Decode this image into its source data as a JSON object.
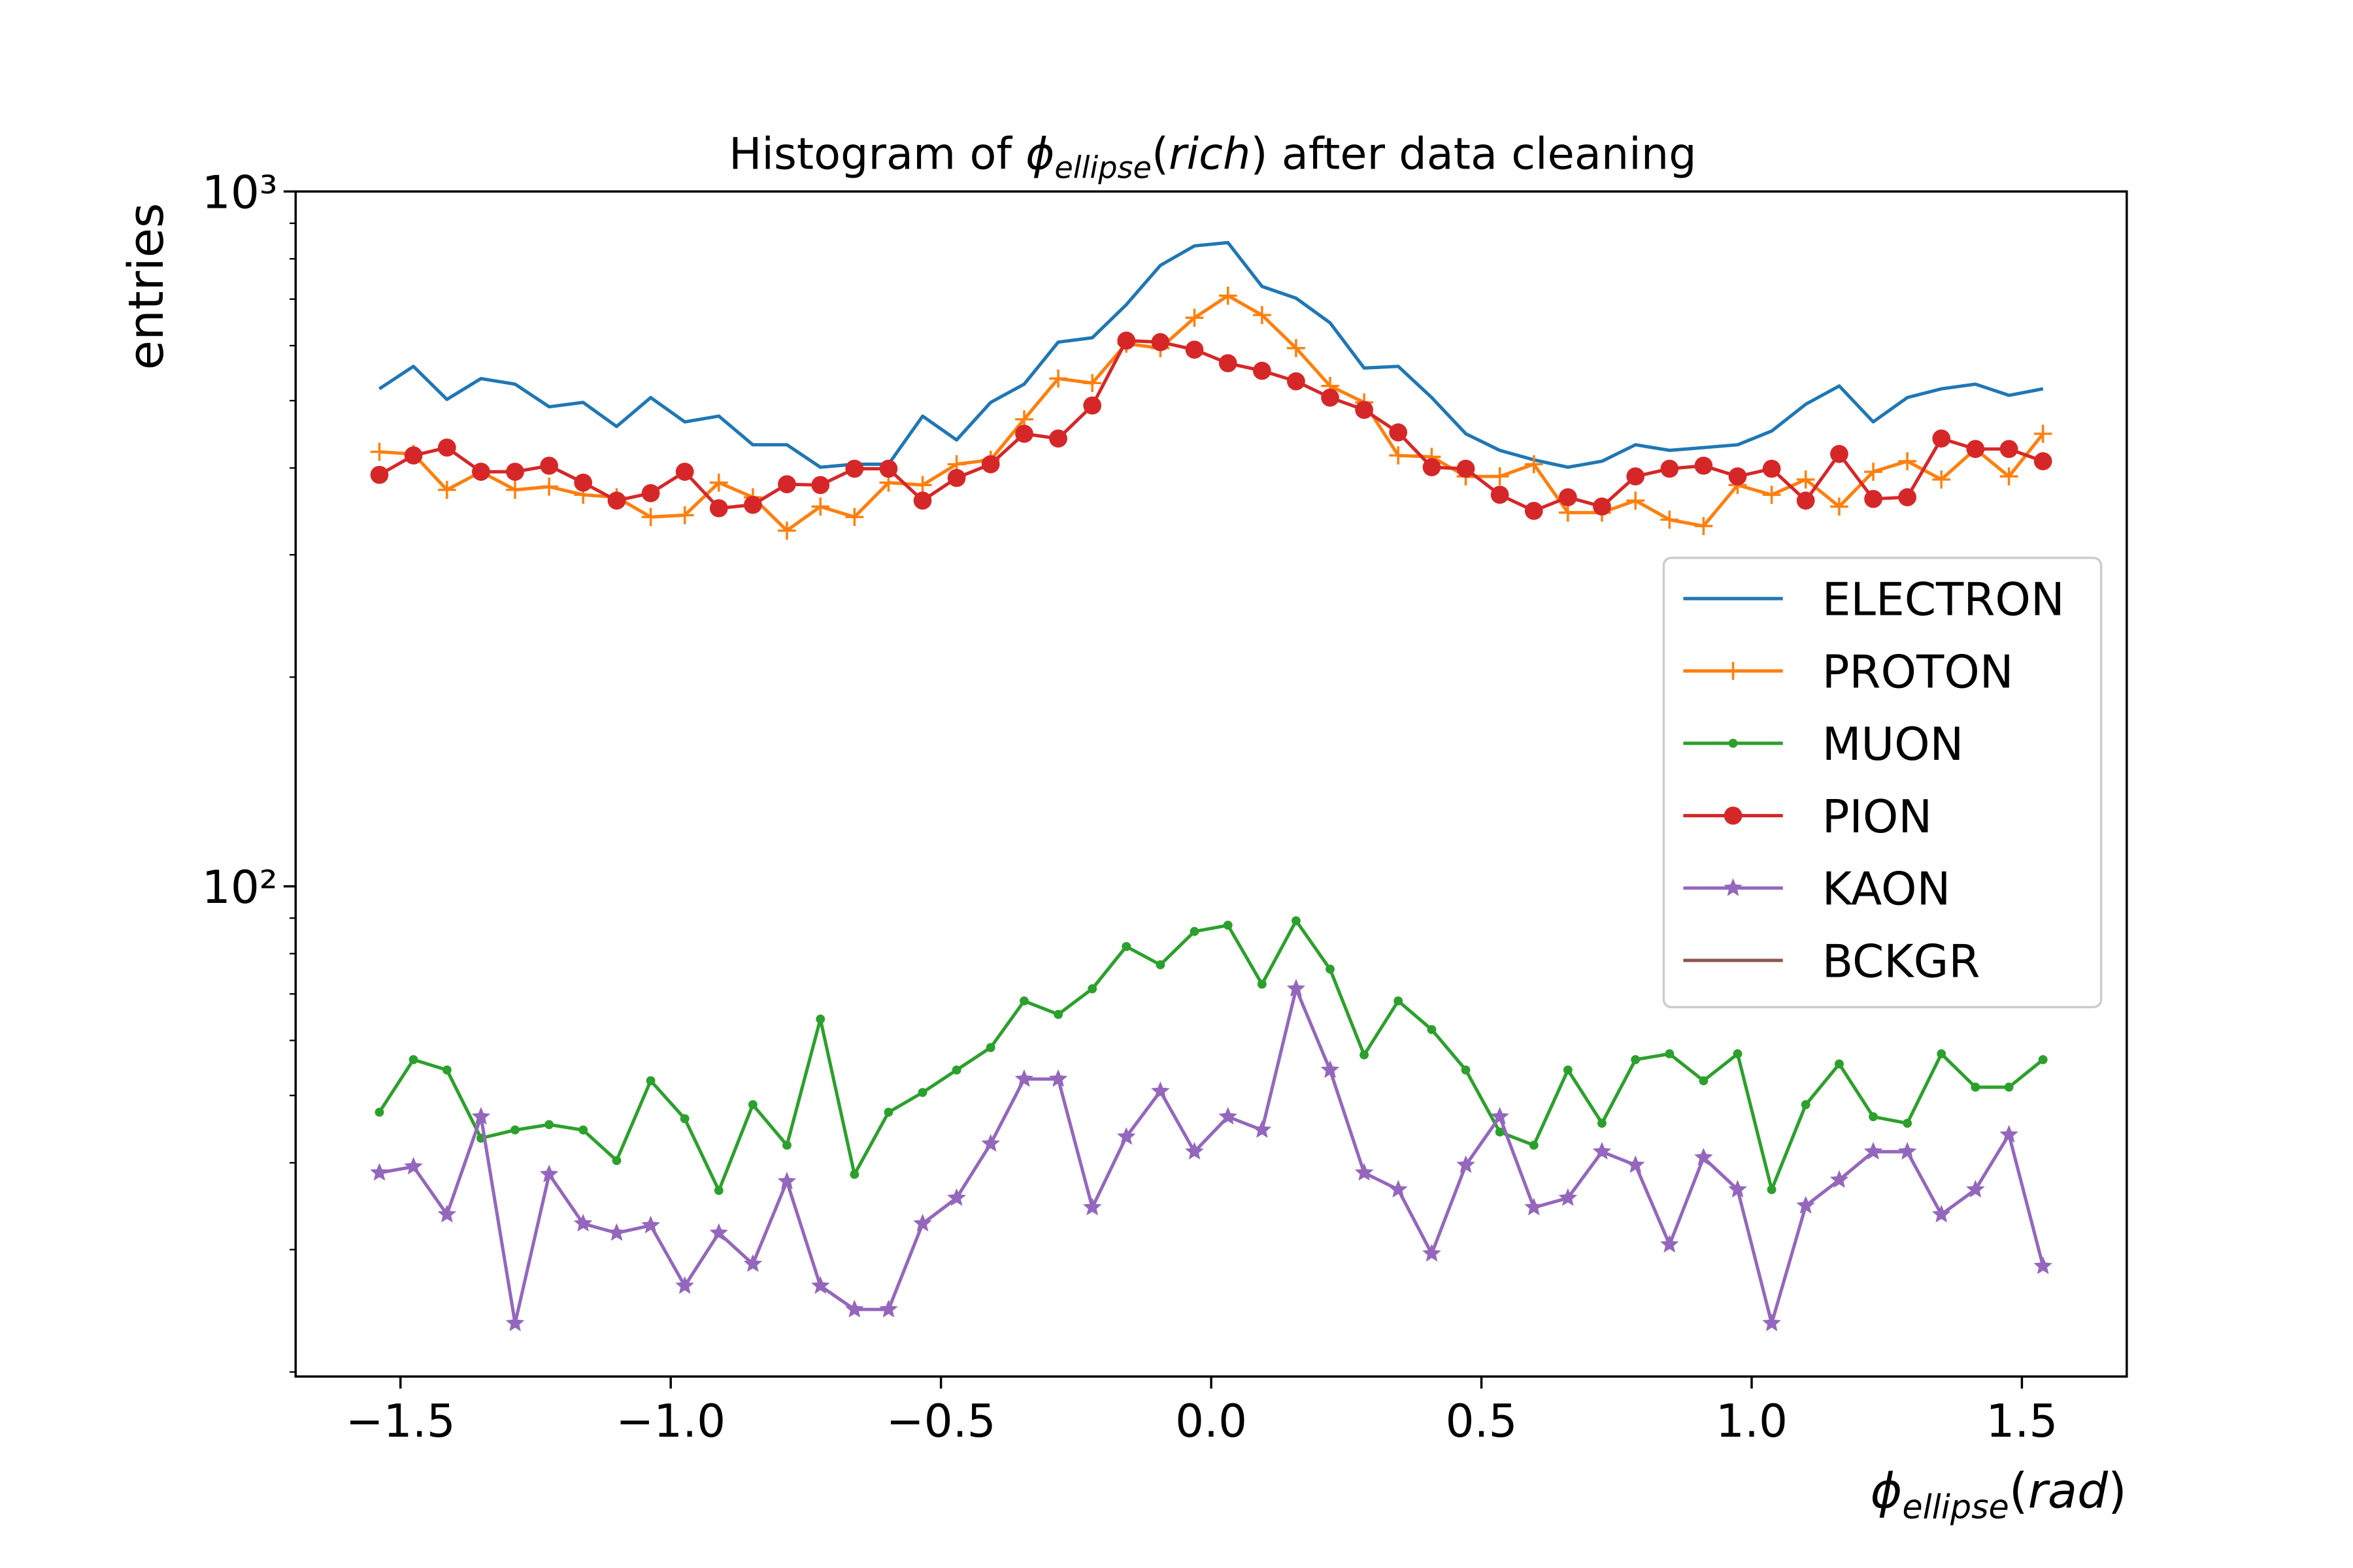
{
  "chart_data": {
    "type": "line",
    "title_parts": [
      "Histogram of ",
      "ϕ",
      "ellipse",
      "(",
      "rich",
      ") after data cleaning"
    ],
    "y_label": "entries",
    "x_label_parts": [
      "ϕ",
      "ellipse",
      "(",
      "rad",
      ")"
    ],
    "log_y": true,
    "legend": "right",
    "xlim": [
      -1.694,
      1.694
    ],
    "ylim": [
      19.7,
      1000
    ],
    "xticks": [
      {
        "value": -1.5,
        "label": "−1.5"
      },
      {
        "value": -1.0,
        "label": "−1.0"
      },
      {
        "value": -0.5,
        "label": "−0.5"
      },
      {
        "value": 0.0,
        "label": "0.0"
      },
      0.5,
      {
        "value": 1.0,
        "label": "1.0"
      },
      1.5
    ],
    "yticks": [
      {
        "value": 100,
        "label": "10²"
      },
      {
        "value": 1000,
        "label": "10³"
      }
    ],
    "yminorticks": [
      20,
      30,
      40,
      50,
      60,
      70,
      80,
      90,
      200,
      300,
      400,
      500,
      600,
      700,
      800,
      900
    ],
    "x": [
      -1.539,
      -1.476,
      -1.414,
      -1.351,
      -1.288,
      -1.225,
      -1.162,
      -1.1,
      -1.037,
      -0.974,
      -0.911,
      -0.848,
      -0.785,
      -0.723,
      -0.66,
      -0.597,
      -0.534,
      -0.471,
      -0.408,
      -0.346,
      -0.283,
      -0.22,
      -0.157,
      -0.094,
      -0.031,
      0.031,
      0.094,
      0.157,
      0.22,
      0.283,
      0.346,
      0.408,
      0.471,
      0.534,
      0.597,
      0.66,
      0.723,
      0.785,
      0.848,
      0.911,
      0.974,
      1.037,
      1.1,
      1.162,
      1.225,
      1.288,
      1.351,
      1.414,
      1.476,
      1.539
    ],
    "series": [
      {
        "name": "ELECTRON",
        "color": "#1f77b4",
        "marker": "none",
        "values": [
          520,
          560,
          502,
          538,
          528,
          490,
          497,
          459,
          505,
          466,
          475,
          432,
          432,
          401,
          405,
          405,
          475,
          439,
          497,
          528,
          607,
          616,
          687,
          783,
          835,
          844,
          730,
          702,
          647,
          557,
          560,
          505,
          448,
          424,
          411,
          401,
          409,
          432,
          424,
          428,
          432,
          452,
          494,
          525,
          466,
          505,
          520,
          528,
          509,
          520
        ]
      },
      {
        "name": "PROTON",
        "color": "#ff7f0e",
        "marker": "plus",
        "values": [
          422,
          419,
          372,
          395,
          372,
          376,
          366,
          363,
          340,
          342,
          381,
          363,
          325,
          352,
          340,
          381,
          378,
          405,
          411,
          470,
          538,
          530,
          604,
          595,
          658,
          708,
          664,
          595,
          525,
          497,
          417,
          415,
          389,
          389,
          405,
          345,
          345,
          359,
          337,
          330,
          378,
          366,
          385,
          352,
          395,
          409,
          385,
          426,
          389,
          448
        ]
      },
      {
        "name": "MUON",
        "color": "#2ca02c",
        "marker": "point",
        "values": [
          47.3,
          56.3,
          54.4,
          43.4,
          44.6,
          45.4,
          44.6,
          40.3,
          52.5,
          46.3,
          36.5,
          48.5,
          42.4,
          64.4,
          38.5,
          47.3,
          50.5,
          54.4,
          58.6,
          68.4,
          65.4,
          71.2,
          81.9,
          77.1,
          86.1,
          87.9,
          72.3,
          89.2,
          76.0,
          57.2,
          68.4,
          62.2,
          54.4,
          44.3,
          42.4,
          54.4,
          45.6,
          56.3,
          57.4,
          52.5,
          57.4,
          36.6,
          48.5,
          55.5,
          46.6,
          45.6,
          57.4,
          51.4,
          51.4,
          56.3
        ]
      },
      {
        "name": "PION",
        "color": "#d62728",
        "marker": "circle",
        "values": [
          391,
          417,
          428,
          395,
          395,
          403,
          381,
          359,
          368,
          395,
          350,
          354,
          379,
          378,
          399,
          399,
          359,
          387,
          405,
          448,
          441,
          492,
          610,
          607,
          592,
          566,
          552,
          533,
          505,
          485,
          450,
          401,
          399,
          366,
          347,
          363,
          352,
          389,
          399,
          403,
          389,
          399,
          359,
          419,
          361,
          363,
          441,
          426,
          426,
          409
        ]
      },
      {
        "name": "KAON",
        "color": "#9467bd",
        "marker": "star",
        "values": [
          38.7,
          39.5,
          33.7,
          46.6,
          23.5,
          38.5,
          32.7,
          31.7,
          32.5,
          26.6,
          31.7,
          28.6,
          37.6,
          26.6,
          24.6,
          24.6,
          32.7,
          35.6,
          42.6,
          52.8,
          52.8,
          34.5,
          43.6,
          50.7,
          41.5,
          46.6,
          44.6,
          71.2,
          54.4,
          38.7,
          36.6,
          29.6,
          39.7,
          46.6,
          34.5,
          35.6,
          41.5,
          39.7,
          30.5,
          40.7,
          36.6,
          23.5,
          34.7,
          37.8,
          41.5,
          41.5,
          33.7,
          36.6,
          43.9,
          28.4
        ]
      },
      {
        "name": "BCKGR",
        "color": "#8c564b",
        "marker": "none"
      }
    ]
  }
}
